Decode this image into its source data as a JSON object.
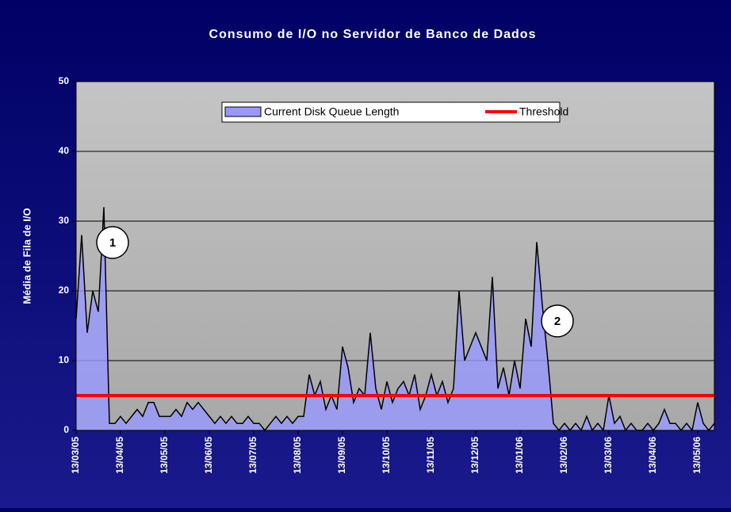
{
  "chart_data": {
    "type": "area",
    "title": "Consumo de I/O no Servidor de Banco de Dados",
    "y_label": "Média de Fila de I/O",
    "ylim": [
      0,
      50
    ],
    "yticks": [
      0,
      10,
      20,
      30,
      40,
      50
    ],
    "grid": true,
    "legend_position": "top",
    "annotations": [
      "1",
      "2"
    ],
    "categories": [
      "13/03/05",
      null,
      null,
      null,
      null,
      null,
      null,
      null,
      "13/04/05",
      null,
      null,
      null,
      null,
      null,
      null,
      null,
      "13/05/05",
      null,
      null,
      null,
      null,
      null,
      null,
      null,
      "13/06/05",
      null,
      null,
      null,
      null,
      null,
      null,
      null,
      "13/07/05",
      null,
      null,
      null,
      null,
      null,
      null,
      null,
      "13/08/05",
      null,
      null,
      null,
      null,
      null,
      null,
      null,
      "13/09/05",
      null,
      null,
      null,
      null,
      null,
      null,
      null,
      "13/10/05",
      null,
      null,
      null,
      null,
      null,
      null,
      null,
      "13/11/05",
      null,
      null,
      null,
      null,
      null,
      null,
      null,
      "13/12/05",
      null,
      null,
      null,
      null,
      null,
      null,
      null,
      "13/01/06",
      null,
      null,
      null,
      null,
      null,
      null,
      null,
      "13/02/06",
      null,
      null,
      null,
      null,
      null,
      null,
      null,
      "13/03/06",
      null,
      null,
      null,
      null,
      null,
      null,
      null,
      "13/04/06",
      null,
      null,
      null,
      null,
      null,
      null,
      null,
      "13/05/06",
      null,
      null,
      null
    ],
    "series": [
      {
        "name": "Current Disk Queue Length",
        "color": "#9999ff",
        "values": [
          16,
          28,
          14,
          20,
          17,
          32,
          1,
          1,
          2,
          1,
          2,
          3,
          2,
          4,
          4,
          2,
          2,
          2,
          3,
          2,
          4,
          3,
          4,
          3,
          2,
          1,
          2,
          1,
          2,
          1,
          1,
          2,
          1,
          1,
          0,
          1,
          2,
          1,
          2,
          1,
          2,
          2,
          8,
          5,
          7,
          3,
          5,
          3,
          12,
          9,
          4,
          6,
          5,
          14,
          6,
          3,
          7,
          4,
          6,
          7,
          5,
          8,
          3,
          5,
          8,
          5,
          7,
          4,
          6,
          20,
          10,
          12,
          14,
          12,
          10,
          22,
          6,
          9,
          5,
          10,
          6,
          16,
          12,
          27,
          18,
          10,
          1,
          0,
          1,
          0,
          1,
          0,
          2,
          0,
          1,
          0,
          5,
          1,
          2,
          0,
          1,
          0,
          0,
          1,
          0,
          1,
          3,
          1,
          1,
          0,
          1,
          0,
          4,
          1,
          0,
          1
        ]
      }
    ],
    "threshold": {
      "name": "Threshold",
      "value": 5,
      "color": "#ff0000"
    }
  }
}
